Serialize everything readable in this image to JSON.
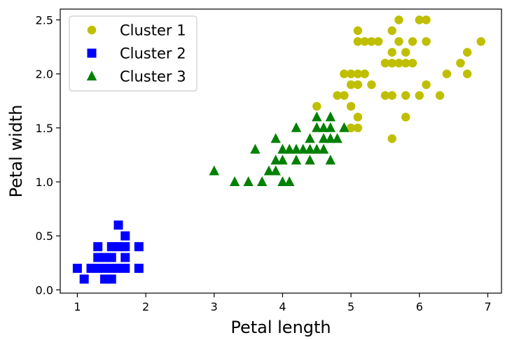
{
  "chart_data": {
    "type": "scatter",
    "title": "",
    "xlabel": "Petal length",
    "ylabel": "Petal width",
    "xlim": [
      0.75,
      7.2
    ],
    "ylim": [
      -0.03,
      2.6
    ],
    "xticks": [
      1,
      2,
      3,
      4,
      5,
      6,
      7
    ],
    "yticks": [
      0.0,
      0.5,
      1.0,
      1.5,
      2.0,
      2.5
    ],
    "xtick_labels": [
      "1",
      "2",
      "3",
      "4",
      "5",
      "6",
      "7"
    ],
    "ytick_labels": [
      "0.0",
      "0.5",
      "1.0",
      "1.5",
      "2.0",
      "2.5"
    ],
    "grid": false,
    "legend_position": "top-left",
    "series": [
      {
        "name": "Cluster 1",
        "marker": "circle",
        "color": "#bfbf00",
        "points": [
          [
            4.5,
            1.7
          ],
          [
            5.0,
            1.5
          ],
          [
            5.1,
            1.5
          ],
          [
            4.9,
            1.8
          ],
          [
            4.8,
            1.8
          ],
          [
            4.9,
            2.0
          ],
          [
            5.0,
            2.0
          ],
          [
            5.1,
            2.0
          ],
          [
            5.2,
            2.0
          ],
          [
            5.0,
            1.9
          ],
          [
            5.1,
            1.9
          ],
          [
            5.0,
            1.7
          ],
          [
            5.1,
            1.6
          ],
          [
            5.3,
            1.9
          ],
          [
            5.1,
            2.4
          ],
          [
            5.1,
            2.3
          ],
          [
            5.2,
            2.3
          ],
          [
            5.3,
            2.3
          ],
          [
            5.4,
            2.3
          ],
          [
            5.5,
            2.1
          ],
          [
            5.6,
            2.1
          ],
          [
            5.7,
            2.1
          ],
          [
            5.8,
            2.1
          ],
          [
            5.6,
            2.4
          ],
          [
            5.7,
            2.5
          ],
          [
            6.0,
            2.5
          ],
          [
            6.1,
            2.5
          ],
          [
            5.7,
            2.3
          ],
          [
            5.9,
            2.3
          ],
          [
            6.1,
            2.3
          ],
          [
            5.6,
            2.2
          ],
          [
            5.8,
            2.2
          ],
          [
            5.5,
            1.8
          ],
          [
            5.6,
            1.8
          ],
          [
            5.8,
            1.8
          ],
          [
            6.0,
            1.8
          ],
          [
            6.1,
            1.9
          ],
          [
            5.9,
            2.1
          ],
          [
            6.3,
            1.8
          ],
          [
            6.4,
            2.0
          ],
          [
            6.6,
            2.1
          ],
          [
            6.7,
            2.2
          ],
          [
            6.7,
            2.0
          ],
          [
            6.9,
            2.3
          ],
          [
            5.6,
            1.4
          ],
          [
            5.8,
            1.6
          ]
        ]
      },
      {
        "name": "Cluster 2",
        "marker": "square",
        "color": "#0000ff",
        "points": [
          [
            1.0,
            0.2
          ],
          [
            1.1,
            0.1
          ],
          [
            1.2,
            0.2
          ],
          [
            1.3,
            0.2
          ],
          [
            1.4,
            0.2
          ],
          [
            1.5,
            0.2
          ],
          [
            1.6,
            0.2
          ],
          [
            1.7,
            0.2
          ],
          [
            1.9,
            0.2
          ],
          [
            1.3,
            0.3
          ],
          [
            1.4,
            0.3
          ],
          [
            1.5,
            0.3
          ],
          [
            1.7,
            0.3
          ],
          [
            1.3,
            0.4
          ],
          [
            1.5,
            0.4
          ],
          [
            1.6,
            0.4
          ],
          [
            1.7,
            0.4
          ],
          [
            1.9,
            0.4
          ],
          [
            1.4,
            0.1
          ],
          [
            1.5,
            0.1
          ],
          [
            1.7,
            0.5
          ],
          [
            1.6,
            0.6
          ]
        ]
      },
      {
        "name": "Cluster 3",
        "marker": "triangle",
        "color": "#008000",
        "points": [
          [
            3.0,
            1.1
          ],
          [
            3.3,
            1.0
          ],
          [
            3.5,
            1.0
          ],
          [
            3.7,
            1.0
          ],
          [
            3.6,
            1.3
          ],
          [
            3.8,
            1.1
          ],
          [
            3.9,
            1.1
          ],
          [
            3.9,
            1.2
          ],
          [
            3.9,
            1.4
          ],
          [
            4.0,
            1.0
          ],
          [
            4.1,
            1.0
          ],
          [
            4.0,
            1.2
          ],
          [
            4.0,
            1.3
          ],
          [
            4.1,
            1.3
          ],
          [
            4.2,
            1.2
          ],
          [
            4.2,
            1.3
          ],
          [
            4.2,
            1.5
          ],
          [
            4.3,
            1.3
          ],
          [
            4.4,
            1.2
          ],
          [
            4.4,
            1.3
          ],
          [
            4.4,
            1.4
          ],
          [
            4.5,
            1.3
          ],
          [
            4.5,
            1.5
          ],
          [
            4.5,
            1.6
          ],
          [
            4.6,
            1.3
          ],
          [
            4.6,
            1.4
          ],
          [
            4.6,
            1.5
          ],
          [
            4.7,
            1.2
          ],
          [
            4.7,
            1.4
          ],
          [
            4.7,
            1.5
          ],
          [
            4.7,
            1.6
          ],
          [
            4.8,
            1.4
          ],
          [
            4.9,
            1.5
          ]
        ]
      }
    ]
  }
}
